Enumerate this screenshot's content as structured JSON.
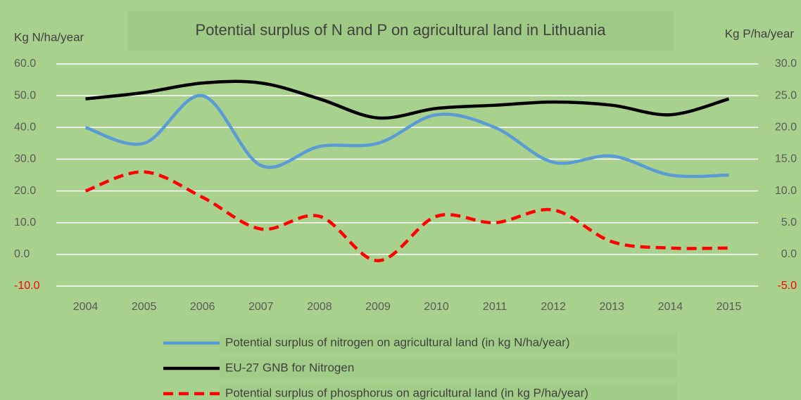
{
  "chart_data": {
    "type": "line",
    "title": "Potential surplus of N and P on agricultural land in Lithuania",
    "y_label": "Kg N/ha/year",
    "y2_label": "Kg P/ha/year",
    "categories": [
      "2004",
      "2005",
      "2006",
      "2007",
      "2008",
      "2009",
      "2010",
      "2011",
      "2012",
      "2013",
      "2014",
      "2015"
    ],
    "series": [
      {
        "name": "Potential surplus of nitrogen on agricultural land (in kg N/ha/year)",
        "color": "#5b9bd5",
        "dash": false,
        "axis": "y",
        "values": [
          40,
          35,
          50,
          28,
          34,
          35,
          44,
          40,
          29,
          31,
          25,
          25
        ]
      },
      {
        "name": "EU-27 GNB for Nitrogen",
        "color": "#000000",
        "dash": false,
        "axis": "y",
        "values": [
          49,
          51,
          54,
          54,
          49,
          43,
          46,
          47,
          48,
          47,
          44,
          49
        ]
      },
      {
        "name": "Potential surplus of phosphorus on agricultural land (in kg P/ha/year)",
        "color": "#ff0000",
        "dash": true,
        "axis": "y2",
        "values": [
          10,
          13,
          9,
          4,
          6,
          -1,
          6,
          5,
          7,
          2,
          1,
          1
        ]
      }
    ],
    "ylim": [
      -10,
      60
    ],
    "yticks": [
      {
        "value": 60,
        "label": "60.0"
      },
      {
        "value": 50,
        "label": "50.0"
      },
      {
        "value": 40,
        "label": "40.0"
      },
      {
        "value": 30,
        "label": "30.0"
      },
      {
        "value": 20,
        "label": "20.0"
      },
      {
        "value": 10,
        "label": "10.0"
      },
      {
        "value": 0,
        "label": "0.0"
      },
      {
        "value": -10,
        "label": "-10.0"
      }
    ],
    "y2lim": [
      -5,
      30
    ],
    "y2ticks": [
      {
        "value": 30,
        "label": "30.0"
      },
      {
        "value": 25,
        "label": "25.0"
      },
      {
        "value": 20,
        "label": "20.0"
      },
      {
        "value": 15,
        "label": "15.0"
      },
      {
        "value": 10,
        "label": "10.0"
      },
      {
        "value": 5,
        "label": "5.0"
      },
      {
        "value": 0,
        "label": "0.0"
      },
      {
        "value": -5,
        "label": "-5.0"
      }
    ],
    "grid": true,
    "smooth": true,
    "negative_tick_color": "#ff0000",
    "legend": "bottom",
    "background": "#a9d18e"
  }
}
